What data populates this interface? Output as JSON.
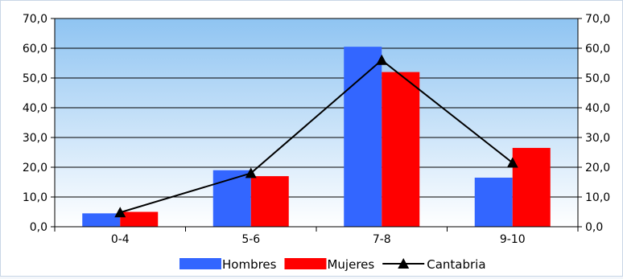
{
  "chart_data": {
    "type": "bar",
    "categories": [
      "0-4",
      "5-6",
      "7-8",
      "9-10"
    ],
    "series": [
      {
        "name": "Hombres",
        "type": "bar",
        "values": [
          4.5,
          19.0,
          60.5,
          16.5
        ],
        "color": "#3366ff"
      },
      {
        "name": "Mujeres",
        "type": "bar",
        "values": [
          5.0,
          17.0,
          52.0,
          26.5
        ],
        "color": "#ff0000"
      },
      {
        "name": "Cantabria",
        "type": "line",
        "values": [
          4.8,
          18.0,
          56.0,
          21.5
        ],
        "color": "#000000",
        "marker": "triangle"
      }
    ],
    "y_ticks": [
      "0,0",
      "10,0",
      "20,0",
      "30,0",
      "40,0",
      "50,0",
      "60,0",
      "70,0"
    ],
    "ylim": [
      0,
      70
    ],
    "y_axis_sides": "left-and-right",
    "grid": true,
    "legend_position": "bottom"
  }
}
